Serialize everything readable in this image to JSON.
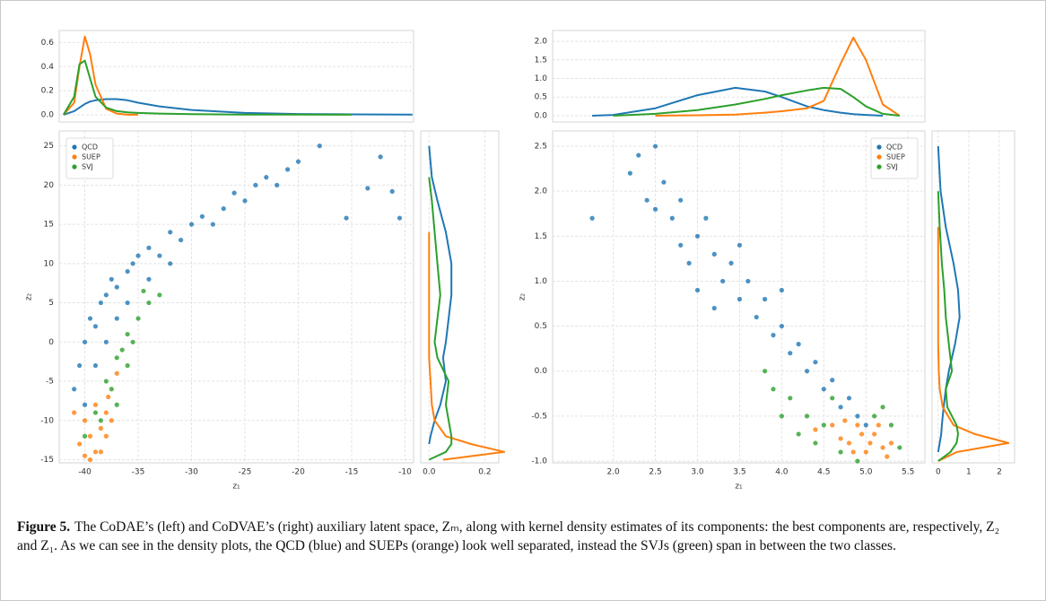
{
  "chart_data": [
    {
      "type": "line",
      "x": [
        -42,
        -41,
        -40.5,
        -40,
        -39.5,
        -39,
        -38,
        -37,
        -36,
        -35,
        -33,
        -30,
        -25,
        -20,
        -15,
        -10,
        -9.3
      ],
      "series": [
        {
          "color": "#1f77b4",
          "values": [
            0.0,
            0.03,
            0.06,
            0.09,
            0.11,
            0.12,
            0.13,
            0.13,
            0.12,
            0.1,
            0.07,
            0.04,
            0.015,
            0.006,
            0.003,
            0.002,
            0.002
          ]
        },
        {
          "color": "#ff7f0e",
          "values": [
            0.0,
            0.1,
            0.4,
            0.65,
            0.5,
            0.25,
            0.05,
            0.01,
            0.0,
            0.0,
            null,
            null,
            null,
            null,
            null,
            null,
            null
          ]
        },
        {
          "color": "#2ca02c",
          "values": [
            0.0,
            0.15,
            0.42,
            0.45,
            0.3,
            0.15,
            0.06,
            0.03,
            0.02,
            0.015,
            0.01,
            0.005,
            0.002,
            0.001,
            0.0,
            null,
            null
          ]
        }
      ],
      "xlim": [
        -42.4,
        -9.2
      ],
      "ylim": [
        -0.06,
        0.7
      ],
      "yticks": [
        {
          "value": 0,
          "label": "0.0"
        },
        0.2,
        0.4,
        0.6
      ],
      "grid": true
    },
    {
      "type": "scatter",
      "xlabel": "z₁",
      "ylabel": "z₂",
      "legend": "upper left",
      "series": [
        {
          "name": "QCD",
          "color": "#1f77b4",
          "x": [
            -41,
            -40.5,
            -40,
            -39.5,
            -39,
            -38.5,
            -38,
            -37.5,
            -37,
            -36,
            -35.5,
            -35,
            -34,
            -33,
            -32,
            -31,
            -30,
            -29,
            -28,
            -27,
            -26,
            -25,
            -24,
            -23,
            -22,
            -21,
            -20,
            -18,
            -15.5,
            -12.3,
            -11.2,
            -10.5,
            -13.5,
            -38,
            -37,
            -36,
            -34,
            -32,
            -40,
            -39
          ],
          "values": [
            -6,
            -3,
            0,
            3,
            2,
            5,
            6,
            8,
            7,
            9,
            10,
            11,
            12,
            11,
            14,
            13,
            15,
            16,
            15,
            17,
            19,
            18,
            20,
            21,
            20,
            22,
            23,
            25,
            15.8,
            23.6,
            19.2,
            15.8,
            19.6,
            0,
            3,
            5,
            8,
            10,
            -8,
            -3
          ]
        },
        {
          "name": "SUEP",
          "color": "#ff7f0e",
          "x": [
            -40,
            -39.5,
            -39,
            -39.5,
            -38.5,
            -38,
            -40.5,
            -38.5,
            -37.8,
            -37,
            -39,
            -40,
            -38,
            -41,
            -37.5
          ],
          "values": [
            -10,
            -12,
            -14,
            -15,
            -11,
            -9,
            -13,
            -14,
            -7,
            -4,
            -8,
            -14.5,
            -12,
            -9,
            -10
          ]
        },
        {
          "name": "SVJ",
          "color": "#2ca02c",
          "x": [
            -37,
            -36.5,
            -36,
            -35,
            -34,
            -33,
            -38,
            -39,
            -37.5,
            -34.5,
            -38.5,
            -36,
            -35.5,
            -40,
            -37
          ],
          "values": [
            -2,
            -1,
            1,
            3,
            5,
            6,
            -5,
            -9,
            -6,
            6.5,
            -10,
            -3,
            0,
            -12,
            -8
          ]
        }
      ],
      "xlim": [
        -42.4,
        -9.2
      ],
      "ylim": [
        -15.4,
        26.9
      ],
      "xticks": [
        -40,
        -35,
        -30,
        -25,
        -20,
        -15,
        -10
      ],
      "yticks": [
        -15,
        -10,
        -5,
        0,
        5,
        10,
        15,
        20,
        25
      ],
      "grid": true
    },
    {
      "type": "line",
      "orientation": "horizontal",
      "y": [
        -15,
        -14,
        -13,
        -12,
        -10,
        -8,
        -5,
        -2,
        0,
        3,
        6,
        10,
        14,
        18,
        21,
        25
      ],
      "series": [
        {
          "color": "#1f77b4",
          "values": [
            null,
            null,
            0.0,
            0.005,
            0.02,
            0.04,
            0.06,
            0.05,
            0.06,
            0.07,
            0.08,
            0.08,
            0.06,
            0.03,
            0.01,
            0.0
          ]
        },
        {
          "color": "#ff7f0e",
          "values": [
            0.05,
            0.27,
            0.15,
            0.06,
            0.02,
            0.01,
            0.005,
            0.0,
            0.0,
            0.0,
            0.0,
            0.0,
            0.0,
            null,
            null,
            null
          ]
        },
        {
          "color": "#2ca02c",
          "values": [
            0.0,
            0.06,
            0.08,
            0.08,
            0.07,
            0.06,
            0.07,
            0.03,
            0.02,
            0.03,
            0.04,
            0.03,
            0.02,
            0.01,
            0.0,
            null
          ]
        }
      ],
      "xlim": [
        -0.03,
        0.25
      ],
      "ylim": [
        -15.4,
        26.9
      ],
      "xticks": [
        {
          "value": 0,
          "label": "0.0"
        },
        0.2
      ],
      "grid": true
    },
    {
      "type": "line",
      "x": [
        1.75,
        2.0,
        2.5,
        3.0,
        3.45,
        3.8,
        4.0,
        4.3,
        4.5,
        4.7,
        4.85,
        5.0,
        5.2,
        5.4
      ],
      "series": [
        {
          "color": "#1f77b4",
          "values": [
            0.0,
            0.02,
            0.2,
            0.55,
            0.75,
            0.65,
            0.5,
            0.25,
            0.15,
            0.08,
            0.04,
            0.02,
            0.0,
            null
          ]
        },
        {
          "color": "#ff7f0e",
          "values": [
            null,
            null,
            0.0,
            0.01,
            0.03,
            0.08,
            0.12,
            0.2,
            0.4,
            1.4,
            2.1,
            1.5,
            0.3,
            0.0
          ]
        },
        {
          "color": "#2ca02c",
          "values": [
            null,
            0.0,
            0.05,
            0.15,
            0.3,
            0.45,
            0.55,
            0.68,
            0.75,
            0.72,
            0.5,
            0.25,
            0.05,
            0.0
          ]
        }
      ],
      "xlim": [
        1.28,
        5.7
      ],
      "ylim": [
        -0.17,
        2.29
      ],
      "yticks": [
        {
          "value": 0,
          "label": "0.0"
        },
        0.5,
        {
          "value": 1,
          "label": "1.0"
        },
        1.5,
        {
          "value": 2,
          "label": "2.0"
        }
      ],
      "grid": true
    },
    {
      "type": "scatter",
      "xlabel": "z₁",
      "ylabel": "z₂",
      "legend": "upper right",
      "series": [
        {
          "name": "QCD",
          "color": "#1f77b4",
          "x": [
            1.75,
            2.2,
            2.3,
            2.5,
            2.4,
            2.6,
            2.7,
            2.8,
            3.0,
            2.9,
            3.1,
            3.2,
            3.3,
            3.4,
            3.5,
            3.6,
            3.7,
            3.8,
            3.9,
            4.0,
            4.1,
            4.2,
            4.3,
            4.4,
            4.5,
            4.6,
            4.7,
            4.8,
            4.9,
            5.0,
            3.0,
            2.8,
            3.5,
            4.0,
            2.5,
            3.2
          ],
          "values": [
            1.7,
            2.2,
            2.4,
            2.5,
            1.9,
            2.1,
            1.7,
            1.9,
            1.5,
            1.2,
            1.7,
            1.3,
            1.0,
            1.2,
            0.8,
            1.0,
            0.6,
            0.8,
            0.4,
            0.5,
            0.2,
            0.3,
            0.0,
            0.1,
            -0.2,
            -0.1,
            -0.4,
            -0.3,
            -0.5,
            -0.6,
            0.9,
            1.4,
            1.4,
            0.9,
            1.8,
            0.7
          ]
        },
        {
          "name": "SUEP",
          "color": "#ff7f0e",
          "x": [
            4.6,
            4.8,
            5.0,
            5.1,
            4.9,
            5.2,
            4.7,
            5.05,
            4.85,
            5.15,
            4.4,
            5.25,
            4.95,
            4.75,
            5.3
          ],
          "values": [
            -0.6,
            -0.8,
            -0.9,
            -0.7,
            -0.6,
            -0.85,
            -0.75,
            -0.8,
            -0.9,
            -0.6,
            -0.65,
            -0.95,
            -0.7,
            -0.55,
            -0.8
          ]
        },
        {
          "name": "SVJ",
          "color": "#2ca02c",
          "x": [
            3.9,
            4.1,
            4.3,
            4.5,
            4.2,
            4.7,
            5.3,
            5.4,
            4.4,
            4.0,
            5.2,
            4.6,
            3.8,
            4.9,
            5.1
          ],
          "values": [
            -0.2,
            -0.3,
            -0.5,
            -0.6,
            -0.7,
            -0.9,
            -0.6,
            -0.85,
            -0.8,
            -0.5,
            -0.4,
            -0.3,
            0.0,
            -1.0,
            -0.5
          ]
        }
      ],
      "xlim": [
        1.28,
        5.7
      ],
      "ylim": [
        -1.02,
        2.67
      ],
      "xticks": [
        {
          "value": 2,
          "label": "2.0"
        },
        2.5,
        {
          "value": 3,
          "label": "3.0"
        },
        3.5,
        {
          "value": 4,
          "label": "4.0"
        },
        4.5,
        {
          "value": 5,
          "label": "5.0"
        },
        5.5
      ],
      "yticks": [
        {
          "value": -1,
          "label": "-1.0"
        },
        -0.5,
        {
          "value": 0,
          "label": "0.0"
        },
        0.5,
        {
          "value": 1,
          "label": "1.0"
        },
        1.5,
        {
          "value": 2,
          "label": "2.0"
        },
        2.5
      ],
      "grid": true
    },
    {
      "type": "line",
      "orientation": "horizontal",
      "y": [
        -1.0,
        -0.9,
        -0.8,
        -0.7,
        -0.6,
        -0.4,
        -0.2,
        0.0,
        0.3,
        0.6,
        0.9,
        1.2,
        1.6,
        2.0,
        2.5
      ],
      "series": [
        {
          "color": "#1f77b4",
          "values": [
            null,
            0.0,
            0.05,
            0.1,
            0.12,
            0.18,
            0.25,
            0.35,
            0.55,
            0.7,
            0.65,
            0.5,
            0.25,
            0.08,
            0.0
          ]
        },
        {
          "color": "#ff7f0e",
          "values": [
            0.0,
            0.6,
            2.3,
            1.2,
            0.5,
            0.15,
            0.05,
            0.02,
            0.0,
            0.0,
            0.0,
            0.0,
            0.0,
            null,
            null
          ]
        },
        {
          "color": "#2ca02c",
          "values": [
            0.0,
            0.4,
            0.6,
            0.65,
            0.6,
            0.3,
            0.25,
            0.45,
            0.35,
            0.25,
            0.2,
            0.12,
            0.05,
            0.0,
            null
          ]
        }
      ],
      "xlim": [
        -0.2,
        2.5
      ],
      "ylim": [
        -1.02,
        2.67
      ],
      "xticks": [
        0,
        1,
        2
      ],
      "grid": true
    }
  ],
  "caption": {
    "label": "Figure 5.",
    "text": "The CoDAE’s (left) and CoDVAE’s (right) auxiliary latent space, Zₘ, along with kernel density estimates of its components: the best components are, respectively, Z₂ and Z₁. As we can see in the density plots, the QCD (blue) and SUEPs (orange) look well separated, instead the SVJs (green) span in between the two classes."
  }
}
